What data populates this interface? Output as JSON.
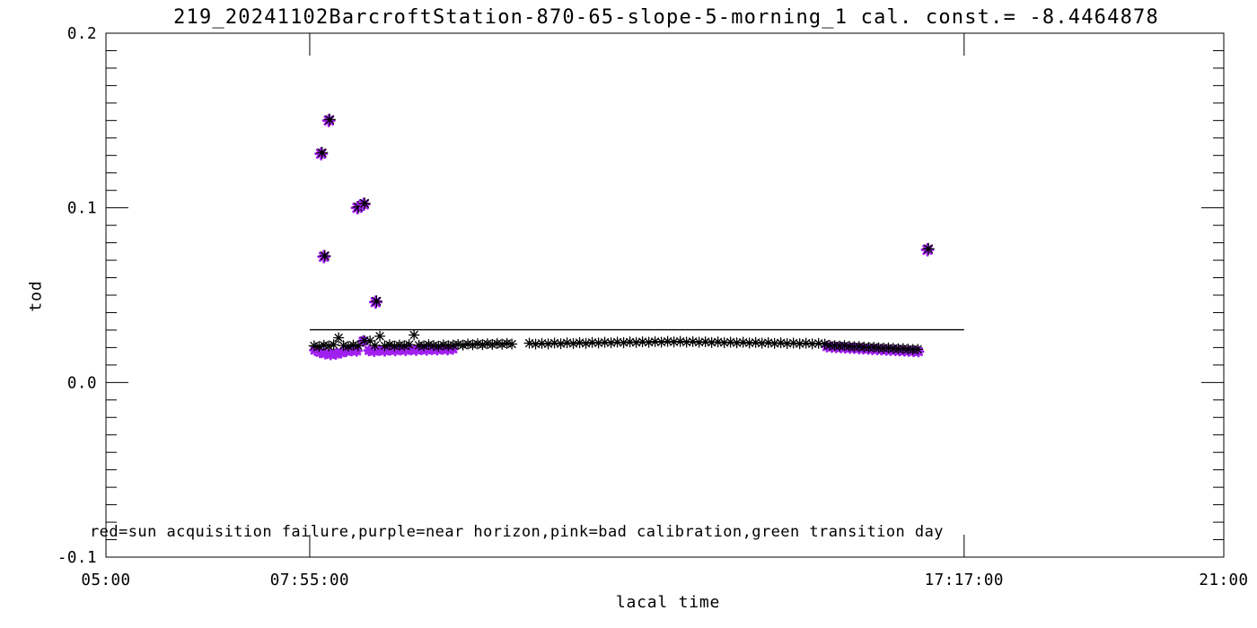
{
  "title": "219_20241102BarcroftStation-870-65-slope-5-morning_1 cal. const.= -8.4464878",
  "annotation": "red=sun acquisition failure,purple=near horizon,pink=bad calibration,green transition day",
  "colors": {
    "foreground": "#000000",
    "purple_flag": "#A020F0",
    "background": "#FFFFFF"
  },
  "chart_data": {
    "type": "scatter",
    "title": "219_20241102BarcroftStation-870-65-slope-5-morning_1 cal. const.= -8.4464878",
    "xlabel": "lacal time",
    "ylabel": "tod",
    "xlim_hours": [
      5.0,
      21.0
    ],
    "ylim": [
      -0.1,
      0.2
    ],
    "grid": false,
    "legend": "none",
    "x_ticks": [
      {
        "hours": 5.0,
        "label": "05:00"
      },
      {
        "hours": 7.9167,
        "label": "07:55:00"
      },
      {
        "hours": 17.2833,
        "label": "17:17:00"
      },
      {
        "hours": 21.0,
        "label": "21:00"
      }
    ],
    "y_ticks": [
      {
        "value": 0.2,
        "label": "0.2"
      },
      {
        "value": 0.1,
        "label": "0.1"
      },
      {
        "value": 0.0,
        "label": "0.0"
      },
      {
        "value": -0.1,
        "label": "-0.1"
      }
    ],
    "y_minor_step": 0.01,
    "ref_line": {
      "y": 0.0302,
      "x_start_hours": 7.9167,
      "x_end_hours": 17.2833,
      "color": "#000000"
    },
    "series": [
      {
        "name": "near-horizon-purple",
        "color": "#A020F0",
        "marker": "asterisk-bold",
        "points": [
          [
            7.99,
            0.0185
          ],
          [
            8.065,
            0.0172
          ],
          [
            8.14,
            0.0165
          ],
          [
            8.215,
            0.016
          ],
          [
            8.29,
            0.0163
          ],
          [
            8.365,
            0.017
          ],
          [
            8.44,
            0.0178
          ],
          [
            8.515,
            0.0182
          ],
          [
            8.59,
            0.018
          ],
          [
            8.68,
            0.0237
          ],
          [
            8.765,
            0.0183
          ],
          [
            8.84,
            0.0179
          ],
          [
            8.915,
            0.0185
          ],
          [
            8.99,
            0.0181
          ],
          [
            9.065,
            0.0186
          ],
          [
            9.14,
            0.0183
          ],
          [
            9.215,
            0.0187
          ],
          [
            9.29,
            0.0184
          ],
          [
            9.365,
            0.0188
          ],
          [
            9.44,
            0.0185
          ],
          [
            9.515,
            0.0189
          ],
          [
            9.59,
            0.0186
          ],
          [
            9.665,
            0.019
          ],
          [
            9.74,
            0.0187
          ],
          [
            9.815,
            0.0191
          ],
          [
            9.89,
            0.0188
          ],
          [
            9.965,
            0.0192
          ],
          [
            15.32,
            0.0205
          ],
          [
            15.39,
            0.0203
          ],
          [
            15.45,
            0.0201
          ],
          [
            15.52,
            0.02
          ],
          [
            15.58,
            0.0198
          ],
          [
            15.65,
            0.0197
          ],
          [
            15.71,
            0.0196
          ],
          [
            15.78,
            0.0194
          ],
          [
            15.84,
            0.0193
          ],
          [
            15.91,
            0.0192
          ],
          [
            15.97,
            0.019
          ],
          [
            16.04,
            0.0189
          ],
          [
            16.1,
            0.0188
          ],
          [
            16.17,
            0.0186
          ],
          [
            16.23,
            0.0185
          ],
          [
            16.3,
            0.0184
          ],
          [
            16.36,
            0.0182
          ],
          [
            16.43,
            0.0181
          ],
          [
            16.49,
            0.018
          ],
          [
            16.56,
            0.0178
          ],
          [
            16.63,
            0.0177
          ]
        ]
      },
      {
        "name": "measurements-black",
        "color": "#000000",
        "marker": "asterisk",
        "points": [
          [
            7.98,
            0.021
          ],
          [
            8.05,
            0.0206
          ],
          [
            8.12,
            0.0213
          ],
          [
            8.19,
            0.0209
          ],
          [
            8.26,
            0.0216
          ],
          [
            8.33,
            0.0256
          ],
          [
            8.4,
            0.0211
          ],
          [
            8.47,
            0.0207
          ],
          [
            8.54,
            0.0214
          ],
          [
            8.61,
            0.021
          ],
          [
            8.7,
            0.024
          ],
          [
            8.78,
            0.0238
          ],
          [
            8.85,
            0.0212
          ],
          [
            8.92,
            0.0265
          ],
          [
            8.99,
            0.021
          ],
          [
            9.06,
            0.0216
          ],
          [
            9.13,
            0.0209
          ],
          [
            9.2,
            0.0214
          ],
          [
            9.27,
            0.0211
          ],
          [
            9.34,
            0.0217
          ],
          [
            9.41,
            0.0272
          ],
          [
            9.48,
            0.0213
          ],
          [
            9.55,
            0.021
          ],
          [
            9.62,
            0.0216
          ],
          [
            9.69,
            0.0212
          ],
          [
            9.76,
            0.0208
          ],
          [
            9.83,
            0.0215
          ],
          [
            9.9,
            0.0211
          ],
          [
            9.97,
            0.0214
          ],
          [
            10.04,
            0.0218
          ],
          [
            10.11,
            0.0214
          ],
          [
            10.18,
            0.022
          ],
          [
            10.25,
            0.0216
          ],
          [
            10.32,
            0.0221
          ],
          [
            10.39,
            0.0217
          ],
          [
            10.46,
            0.0222
          ],
          [
            10.53,
            0.0218
          ],
          [
            10.6,
            0.0223
          ],
          [
            10.67,
            0.0219
          ],
          [
            10.74,
            0.0224
          ],
          [
            10.81,
            0.022
          ],
          [
            11.06,
            0.0225
          ],
          [
            11.15,
            0.022
          ],
          [
            11.24,
            0.0224
          ],
          [
            11.33,
            0.0221
          ],
          [
            11.42,
            0.0226
          ],
          [
            11.51,
            0.0222
          ],
          [
            11.6,
            0.0227
          ],
          [
            11.69,
            0.0223
          ],
          [
            11.78,
            0.0228
          ],
          [
            11.87,
            0.0224
          ],
          [
            11.96,
            0.0229
          ],
          [
            12.05,
            0.0226
          ],
          [
            12.14,
            0.023
          ],
          [
            12.23,
            0.0227
          ],
          [
            12.32,
            0.0231
          ],
          [
            12.41,
            0.0228
          ],
          [
            12.5,
            0.0232
          ],
          [
            12.59,
            0.0229
          ],
          [
            12.68,
            0.0233
          ],
          [
            12.77,
            0.023
          ],
          [
            12.86,
            0.0234
          ],
          [
            12.95,
            0.0231
          ],
          [
            13.04,
            0.0235
          ],
          [
            13.13,
            0.0232
          ],
          [
            13.22,
            0.0235
          ],
          [
            13.31,
            0.0231
          ],
          [
            13.4,
            0.0234
          ],
          [
            13.49,
            0.023
          ],
          [
            13.58,
            0.0233
          ],
          [
            13.67,
            0.0229
          ],
          [
            13.76,
            0.0232
          ],
          [
            13.85,
            0.0228
          ],
          [
            13.94,
            0.0231
          ],
          [
            14.03,
            0.0227
          ],
          [
            14.12,
            0.023
          ],
          [
            14.21,
            0.0226
          ],
          [
            14.3,
            0.0229
          ],
          [
            14.39,
            0.0225
          ],
          [
            14.48,
            0.0228
          ],
          [
            14.57,
            0.0224
          ],
          [
            14.66,
            0.0227
          ],
          [
            14.75,
            0.0223
          ],
          [
            14.84,
            0.0226
          ],
          [
            14.93,
            0.0222
          ],
          [
            15.02,
            0.0225
          ],
          [
            15.11,
            0.0221
          ],
          [
            15.2,
            0.0224
          ],
          [
            15.29,
            0.022
          ],
          [
            15.36,
            0.0213
          ],
          [
            15.43,
            0.0211
          ],
          [
            15.5,
            0.0209
          ],
          [
            15.57,
            0.0211
          ],
          [
            15.64,
            0.0207
          ],
          [
            15.71,
            0.0205
          ],
          [
            15.78,
            0.0206
          ],
          [
            15.85,
            0.0203
          ],
          [
            15.92,
            0.0201
          ],
          [
            15.99,
            0.0202
          ],
          [
            16.06,
            0.0199
          ],
          [
            16.13,
            0.0197
          ],
          [
            16.2,
            0.0198
          ],
          [
            16.27,
            0.0195
          ],
          [
            16.34,
            0.0193
          ],
          [
            16.41,
            0.0194
          ],
          [
            16.48,
            0.0191
          ],
          [
            16.55,
            0.0189
          ],
          [
            16.62,
            0.019
          ]
        ]
      },
      {
        "name": "flagged-outliers-purple-black",
        "colors": [
          "#A020F0",
          "#000000"
        ],
        "marker": "asterisk-stacked",
        "points": [
          [
            8.08,
            0.131
          ],
          [
            8.12,
            0.072
          ],
          [
            8.19,
            0.15
          ],
          [
            8.6,
            0.1
          ],
          [
            8.69,
            0.102
          ],
          [
            8.86,
            0.046
          ],
          [
            16.76,
            0.076
          ]
        ]
      }
    ]
  }
}
